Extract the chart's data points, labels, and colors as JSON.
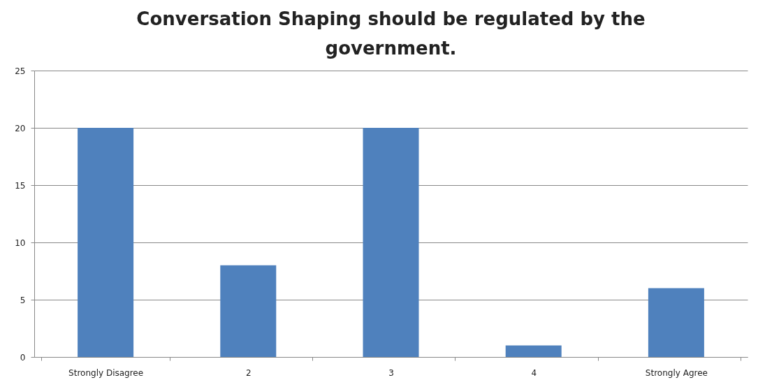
{
  "chart_data": {
    "type": "bar",
    "title": "Conversation Shaping should be regulated by the government.",
    "categories": [
      "Strongly Disagree",
      "2",
      "3",
      "4",
      "Strongly Agree"
    ],
    "values": [
      20,
      8,
      20,
      1,
      6
    ],
    "color": "#4f81bd",
    "ylim": [
      0,
      25
    ],
    "yticks": [
      0,
      5,
      10,
      15,
      20,
      25
    ],
    "grid": "y"
  }
}
